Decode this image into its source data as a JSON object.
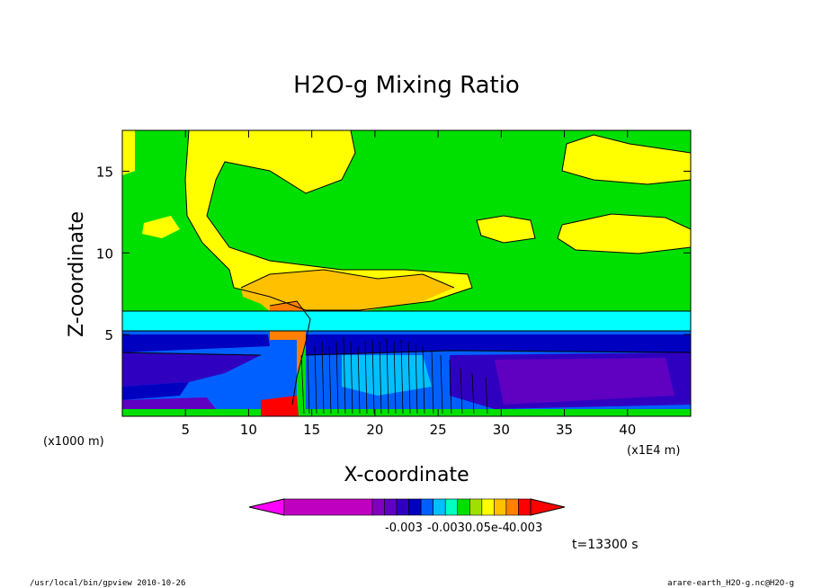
{
  "chart_data": {
    "type": "heatmap",
    "title": "H2O-g Mixing Ratio",
    "xlabel": "X-coordinate",
    "ylabel": "Z-coordinate",
    "x_unit_left": "(x1000 m)",
    "x_unit_right": "(x1E4 m)",
    "xlim": [
      0,
      45
    ],
    "ylim": [
      0,
      17.5
    ],
    "x_ticks": [
      {
        "value": 5,
        "label": "5"
      },
      {
        "value": 10,
        "label": "10"
      },
      {
        "value": 15,
        "label": "15"
      },
      {
        "value": 20,
        "label": "20"
      },
      {
        "value": 25,
        "label": "25"
      },
      {
        "value": 30,
        "label": "30"
      },
      {
        "value": 35,
        "label": "35"
      },
      {
        "value": 40,
        "label": "40"
      }
    ],
    "y_ticks": [
      {
        "value": 5,
        "label": "5"
      },
      {
        "value": 10,
        "label": "10"
      },
      {
        "value": 15,
        "label": "15"
      }
    ],
    "colorbar": {
      "colors": [
        "#c000c0",
        "#8000c0",
        "#6000c0",
        "#3000c0",
        "#0000c0",
        "#0060ff",
        "#00c0ff",
        "#00ffc0",
        "#00e000",
        "#a0e000",
        "#ffff00",
        "#ffc000",
        "#ff8000",
        "#ff0000"
      ],
      "label_left": "-0.003",
      "label_mid": "-0.0030.05e-4",
      "label_right": "0.003"
    },
    "time_label": "t=13300 s",
    "footer_left": "/usr/local/bin/gpview   2010-10-26",
    "footer_right": "arare-earth_H2O-g.nc@H2O-g"
  }
}
